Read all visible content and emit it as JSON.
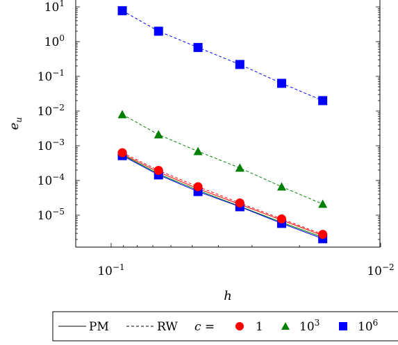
{
  "chart_data": {
    "type": "line",
    "x_scale": "log",
    "y_scale": "log",
    "x_reversed": true,
    "xlabel": "h",
    "ylabel": "e_u",
    "xlim": [
      0.127,
      0.01
    ],
    "ylim": [
      2e-07,
      20
    ],
    "x_ticks": [
      {
        "value": 0.1,
        "base": "10",
        "exp": "−1"
      },
      {
        "value": 0.01,
        "base": "10",
        "exp": "−2"
      }
    ],
    "y_ticks": [
      {
        "value": 10,
        "base": "10",
        "exp": "1"
      },
      {
        "value": 1,
        "base": "10",
        "exp": "0"
      },
      {
        "value": 0.1,
        "base": "10",
        "exp": "−1"
      },
      {
        "value": 0.01,
        "base": "10",
        "exp": "−2"
      },
      {
        "value": 0.001,
        "base": "10",
        "exp": "−3"
      },
      {
        "value": 0.0001,
        "base": "10",
        "exp": "−4"
      },
      {
        "value": 1e-05,
        "base": "10",
        "exp": "−5"
      }
    ],
    "x": [
      0.0909,
      0.0667,
      0.0476,
      0.0333,
      0.0233,
      0.0164
    ],
    "series": [
      {
        "method": "PM",
        "c": "1",
        "line": "solid",
        "marker": "circle",
        "color": "#ff0000",
        "values": [
          0.00058,
          0.000175,
          5.8e-05,
          2.05e-05,
          7.2e-06,
          2.6e-06
        ]
      },
      {
        "method": "PM",
        "c": "10^3",
        "line": "solid",
        "marker": "triangle",
        "color": "#008000",
        "values": [
          0.00055,
          0.000155,
          5.2e-05,
          1.8e-05,
          6.2e-06,
          2.3e-06
        ]
      },
      {
        "method": "PM",
        "c": "10^6",
        "line": "solid",
        "marker": "square",
        "color": "#0000ff",
        "values": [
          0.00052,
          0.000145,
          4.8e-05,
          1.75e-05,
          5.8e-06,
          2.1e-06
        ]
      },
      {
        "method": "RW",
        "c": "1",
        "line": "dashed",
        "marker": "circle",
        "color": "#ff0000",
        "values": [
          0.00063,
          0.000195,
          6.6e-05,
          2.25e-05,
          7.8e-06,
          2.8e-06
        ]
      },
      {
        "method": "RW",
        "c": "10^3",
        "line": "dashed",
        "marker": "triangle",
        "color": "#008000",
        "values": [
          0.008,
          0.0021,
          0.00069,
          0.00023,
          6.6e-05,
          2.1e-05
        ]
      },
      {
        "method": "RW",
        "c": "10^6",
        "line": "dashed",
        "marker": "square",
        "color": "#0000ff",
        "values": [
          7.8,
          2.0,
          0.68,
          0.22,
          0.063,
          0.02
        ]
      }
    ],
    "legend": {
      "placement": "bottom",
      "pm_label": "PM",
      "rw_label": "RW",
      "c_label": "c =",
      "entries": [
        {
          "label": "1",
          "marker": "circle",
          "color": "#ff0000"
        },
        {
          "label": "10",
          "exp": "3",
          "marker": "triangle",
          "color": "#008000"
        },
        {
          "label": "10",
          "exp": "6",
          "marker": "square",
          "color": "#0000ff"
        }
      ]
    }
  }
}
